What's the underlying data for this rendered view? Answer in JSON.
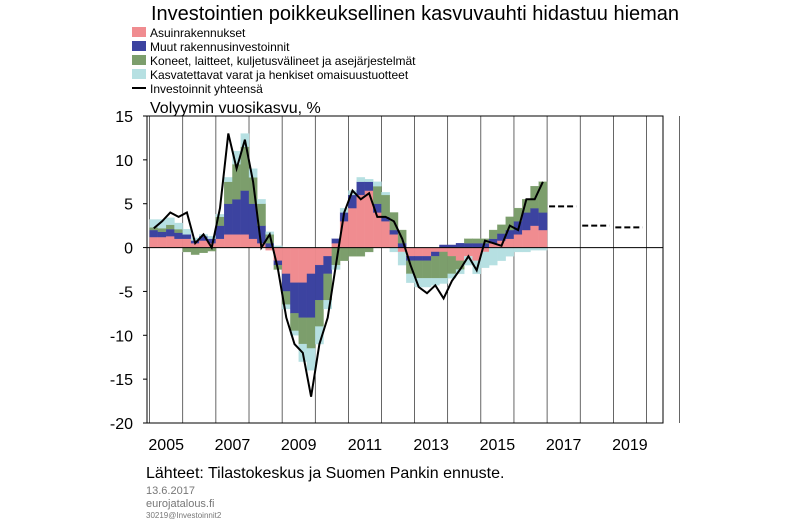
{
  "chart_data": {
    "type": "stacked-bar-line",
    "title": "Investointien poikkeuksellinen kasvuvauhti hidastuu hieman",
    "y_label": "Volyymin vuosikasvu, %",
    "source": "Lähteet: Tilastokeskus ja Suomen Pankin ennuste.",
    "date": "13.6.2017",
    "site": "eurojatalous.fi",
    "code": "30219@Investoinnit2",
    "xlim": [
      2004.92,
      2020.5
    ],
    "ylim": [
      -20,
      15
    ],
    "yticks": [
      15,
      10,
      5,
      0,
      -5,
      -10,
      -15,
      -20
    ],
    "xticks": [
      {
        "value": 2005.5,
        "label": "2005"
      },
      {
        "value": 2007.5,
        "label": "2007"
      },
      {
        "value": 2009.5,
        "label": "2009"
      },
      {
        "value": 2011.5,
        "label": "2011"
      },
      {
        "value": 2013.5,
        "label": "2013"
      },
      {
        "value": 2015.5,
        "label": "2015"
      },
      {
        "value": 2017.5,
        "label": "2017"
      },
      {
        "value": 2019.5,
        "label": "2019"
      }
    ],
    "x": [
      2005,
      2005.25,
      2005.5,
      2005.75,
      2006,
      2006.25,
      2006.5,
      2006.75,
      2007,
      2007.25,
      2007.5,
      2007.75,
      2008,
      2008.25,
      2008.5,
      2008.75,
      2009,
      2009.25,
      2009.5,
      2009.75,
      2010,
      2010.25,
      2010.5,
      2010.75,
      2011,
      2011.25,
      2011.5,
      2011.75,
      2012,
      2012.25,
      2012.5,
      2012.75,
      2013,
      2013.25,
      2013.5,
      2013.75,
      2014,
      2014.25,
      2014.5,
      2014.75,
      2015,
      2015.25,
      2015.5,
      2015.75,
      2016,
      2016.25,
      2016.5,
      2016.75
    ],
    "series": [
      {
        "name": "Asuinrakennukset",
        "color": "#f08c90",
        "values": [
          1.2,
          1.2,
          1.3,
          1.0,
          1.0,
          0.5,
          0.8,
          0.5,
          1.0,
          1.5,
          1.5,
          1.5,
          1.0,
          0.5,
          -0.3,
          -1.5,
          -3.0,
          -4.0,
          -4.0,
          -3.0,
          -2.0,
          -1.0,
          0.5,
          3.0,
          4.5,
          6.0,
          6.5,
          4.0,
          3.0,
          1.5,
          -0.5,
          -1.0,
          -1.0,
          -1.0,
          -0.5,
          -0.5,
          -1.0,
          -1.5,
          -1.0,
          -1.5,
          -0.5,
          0.5,
          0.8,
          1.0,
          1.5,
          2.0,
          2.5,
          2.0
        ]
      },
      {
        "name": "Muut rakennusinvestoinnit",
        "color": "#3c43a0",
        "values": [
          0.8,
          0.6,
          0.8,
          0.7,
          0.5,
          0.3,
          0.5,
          0.5,
          1.5,
          3.5,
          4.0,
          5.0,
          4.0,
          2.0,
          0.5,
          -0.5,
          -2.0,
          -3.5,
          -4.0,
          -5.0,
          -4.0,
          -2.0,
          0.5,
          1.0,
          1.5,
          1.5,
          1.0,
          1.0,
          0.5,
          0.5,
          0.5,
          -0.5,
          -0.5,
          -0.5,
          -0.5,
          0.3,
          0.3,
          0.5,
          0.5,
          0.5,
          0.5,
          0.5,
          0.8,
          1.0,
          1.5,
          2.0,
          2.0,
          2.0
        ]
      },
      {
        "name": "Koneet, laitteet, kuljetusvälineet ja asejärjestelmät",
        "color": "#7c9e6c",
        "values": [
          0.3,
          0.4,
          0.5,
          0.4,
          -0.5,
          -0.8,
          -0.6,
          -0.4,
          1.0,
          2.5,
          4.0,
          5.0,
          3.0,
          2.5,
          1.0,
          -0.5,
          -1.5,
          -2.0,
          -3.0,
          -3.5,
          -3.0,
          -3.0,
          -2.0,
          -1.5,
          -1.0,
          -1.0,
          -0.5,
          2.0,
          2.5,
          2.0,
          1.5,
          -1.5,
          -2.0,
          -2.0,
          -2.5,
          -3.0,
          -2.0,
          -1.0,
          0.5,
          0.5,
          0.5,
          1.0,
          1.0,
          1.5,
          1.5,
          1.5,
          2.5,
          3.5
        ]
      },
      {
        "name": "Kasvatettavat varat ja henkiset omaisuustuotteet",
        "color": "#b6e0e2",
        "values": [
          0.9,
          1.0,
          0.8,
          0.7,
          0.6,
          0.3,
          0.2,
          0.3,
          0.3,
          0.5,
          1.5,
          1.5,
          1.0,
          0.5,
          0.3,
          0.2,
          -0.5,
          -0.5,
          -2.0,
          -2.5,
          -2.0,
          -1.0,
          -0.5,
          0.5,
          0.5,
          0.5,
          0.3,
          0.5,
          0.3,
          -0.5,
          -1.5,
          -1.0,
          -1.0,
          -1.0,
          -0.8,
          -0.6,
          -0.5,
          -0.5,
          -1.0,
          -1.5,
          -1.8,
          -2.0,
          -1.5,
          -1.0,
          -0.5,
          -0.5,
          -0.3,
          -0.3
        ]
      }
    ],
    "line": {
      "name": "Investoinnit yhteensä",
      "color": "#000000",
      "values": [
        2.2,
        3.0,
        4.0,
        3.5,
        4.0,
        0.5,
        1.5,
        0.0,
        4.5,
        13.0,
        9.0,
        12.3,
        7.5,
        0.0,
        1.5,
        -2.5,
        -8.0,
        -11.0,
        -12.0,
        -17.0,
        -11.0,
        -8.0,
        -2.0,
        4.0,
        6.5,
        5.5,
        6.2,
        3.5,
        3.5,
        3.0,
        1.0,
        -2.0,
        -4.5,
        -5.2,
        -4.3,
        -5.8,
        -3.8,
        -2.5,
        -1.0,
        -2.6,
        0.8,
        0.5,
        0.2,
        2.5,
        2.0,
        5.5,
        5.5,
        7.5
      ]
    },
    "forecast": {
      "color": "#000000",
      "x": [
        2017,
        2018,
        2019
      ],
      "values": [
        4.7,
        2.5,
        2.3
      ]
    }
  }
}
